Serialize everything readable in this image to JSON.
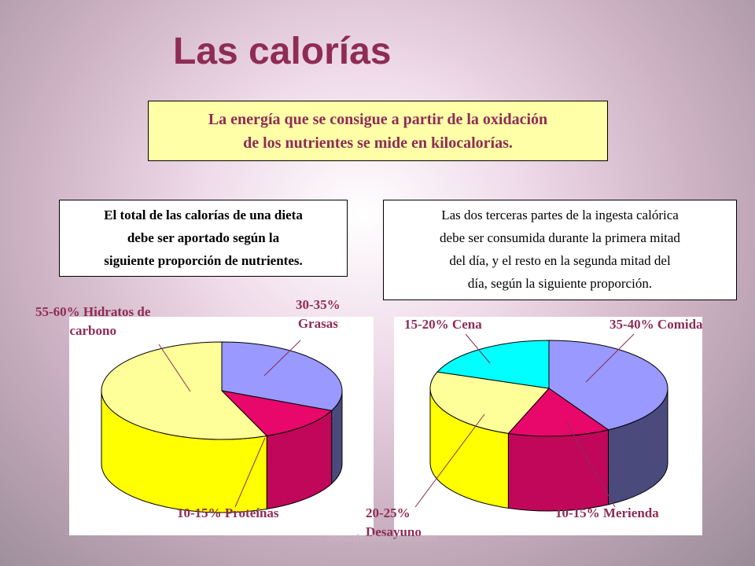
{
  "slide": {
    "title": "Las calorías",
    "definition_line1": "La energía que se consigue a partir de la oxidación",
    "definition_line2": "de los nutrientes se mide en kilocalorías.",
    "nutrients_note_line1": "El total de las calorías de una dieta",
    "nutrients_note_line2": "debe ser aportado según la",
    "nutrients_note_line3": "siguiente proporción de nutrientes.",
    "meals_note_line1": "Las dos terceras partes de la ingesta calórica",
    "meals_note_line2": "debe ser consumida durante la primera mitad",
    "meals_note_line3": "del día, y el resto en la segunda mitad del",
    "meals_note_line4": "día, según la siguiente proporción.",
    "watermark": "www.dealbaycom.com"
  },
  "charts": {
    "left": {
      "label_carbs_1": "55-60% Hidratos de",
      "label_carbs_2": "carbono",
      "label_fats_1": "30-35%",
      "label_fats_2": "Grasas",
      "label_protein": "10-15% Proteínas"
    },
    "right": {
      "label_dinner": "15-20% Cena",
      "label_lunch": "35-40% Comida",
      "label_breakfast_1": "20-25%",
      "label_breakfast_2": "Desayuno",
      "label_snack": "10-15% Merienda"
    }
  },
  "chart_data": [
    {
      "type": "pie",
      "labels": [
        "30-35% Grasas",
        "10-15% Proteínas",
        "55-60% Hidratos de carbono"
      ],
      "values": [
        32.5,
        12.5,
        57.5
      ],
      "colors": [
        "#9999ff",
        "#e8076b",
        "#ffff99"
      ]
    },
    {
      "type": "pie",
      "labels": [
        "35-40% Comida",
        "10-15% Merienda",
        "20-25% Desayuno",
        "15-20% Cena"
      ],
      "values": [
        37.5,
        12.5,
        22.5,
        17.5
      ],
      "colors": [
        "#9999ff",
        "#e8076b",
        "#ffff99",
        "#00ffff"
      ]
    }
  ],
  "colors": {
    "title": "#8e2c55",
    "blue": "#9999ff",
    "magenta": "#e8076b",
    "yellow": "#ffff99",
    "cyan": "#00ffff"
  }
}
